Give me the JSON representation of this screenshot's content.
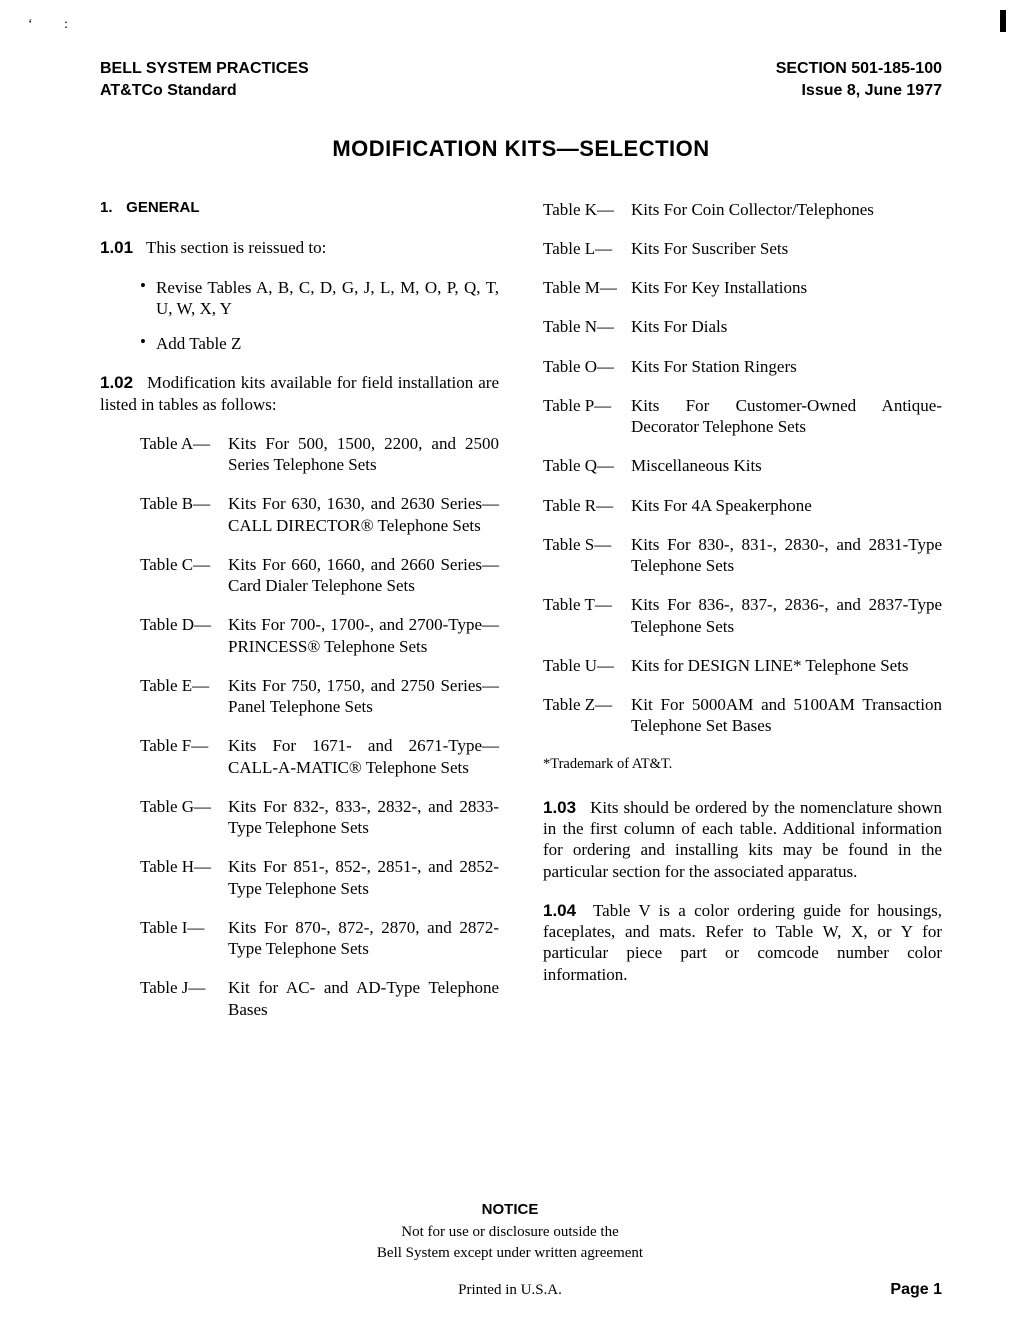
{
  "header": {
    "left_line1": "BELL SYSTEM PRACTICES",
    "left_line2": "AT&TCo Standard",
    "right_line1": "SECTION 501-185-100",
    "right_line2": "Issue 8, June 1977"
  },
  "title": "MODIFICATION KITS—SELECTION",
  "section1": {
    "num": "1.",
    "heading": "GENERAL"
  },
  "p101": {
    "num": "1.01",
    "text": "This section is reissued to:"
  },
  "bullets": [
    "Revise Tables A, B, C, D, G, J, L, M, O, P, Q, T, U, W, X, Y",
    "Add Table Z"
  ],
  "p102": {
    "num": "1.02",
    "text": "Modification kits available for field installation are listed in tables as follows:"
  },
  "tables_left": [
    {
      "label": "Table A—",
      "desc": "Kits For 500, 1500, 2200, and 2500 Series Telephone Sets"
    },
    {
      "label": "Table B—",
      "desc": "Kits For 630, 1630, and 2630 Series—CALL DIRECTOR® Telephone Sets"
    },
    {
      "label": "Table C—",
      "desc": "Kits For 660, 1660, and 2660 Series—Card Dialer Telephone Sets"
    },
    {
      "label": "Table D—",
      "desc": "Kits For 700-, 1700-, and 2700-Type—PRINCESS® Telephone Sets"
    },
    {
      "label": "Table E—",
      "desc": "Kits For 750, 1750, and 2750 Series—Panel Telephone Sets"
    },
    {
      "label": "Table F—",
      "desc": "Kits For 1671- and 2671-Type—CALL-A-MATIC® Telephone Sets"
    },
    {
      "label": "Table G—",
      "desc": "Kits For 832-, 833-, 2832-, and 2833-Type Telephone Sets"
    },
    {
      "label": "Table H—",
      "desc": "Kits For 851-, 852-, 2851-, and 2852-Type Telephone Sets"
    },
    {
      "label": "Table I—",
      "desc": "Kits For 870-, 872-, 2870, and 2872-Type Telephone Sets"
    },
    {
      "label": "Table J—",
      "desc": "Kit for AC- and AD-Type Telephone Bases"
    }
  ],
  "tables_right": [
    {
      "label": "Table K—",
      "desc": "Kits For Coin Collector/Telephones"
    },
    {
      "label": "Table L—",
      "desc": "Kits For Suscriber Sets"
    },
    {
      "label": "Table M—",
      "desc": "Kits For Key Installations"
    },
    {
      "label": "Table N—",
      "desc": "Kits For Dials"
    },
    {
      "label": "Table O—",
      "desc": "Kits For Station Ringers"
    },
    {
      "label": "Table P—",
      "desc": "Kits For Customer-Owned Antique-Decorator Telephone Sets"
    },
    {
      "label": "Table Q—",
      "desc": "Miscellaneous Kits"
    },
    {
      "label": "Table R—",
      "desc": "Kits For 4A Speakerphone"
    },
    {
      "label": "Table S—",
      "desc": "Kits For 830-, 831-, 2830-, and 2831-Type Telephone Sets"
    },
    {
      "label": "Table T—",
      "desc": "Kits For 836-, 837-, 2836-, and 2837-Type Telephone Sets"
    },
    {
      "label": "Table U—",
      "desc": "Kits for DESIGN LINE* Telephone Sets"
    },
    {
      "label": "Table Z—",
      "desc": "Kit For 5000AM and 5100AM Transaction Telephone Set Bases"
    }
  ],
  "footnote": "*Trademark of AT&T.",
  "p103": {
    "num": "1.03",
    "text": "Kits should be ordered by the nomenclature shown in the first column of each table. Additional information for ordering and installing kits may be found in the particular section for the associated apparatus."
  },
  "p104": {
    "num": "1.04",
    "text": "Table V is a color ordering guide for housings, faceplates, and mats. Refer to Table W, X, or Y for particular piece part or comcode number color information."
  },
  "notice": {
    "title": "NOTICE",
    "line1": "Not for use or disclosure outside the",
    "line2": "Bell System except under written agreement"
  },
  "printed": "Printed in U.S.A.",
  "page_number": "Page 1",
  "top_marks": "‘   :"
}
